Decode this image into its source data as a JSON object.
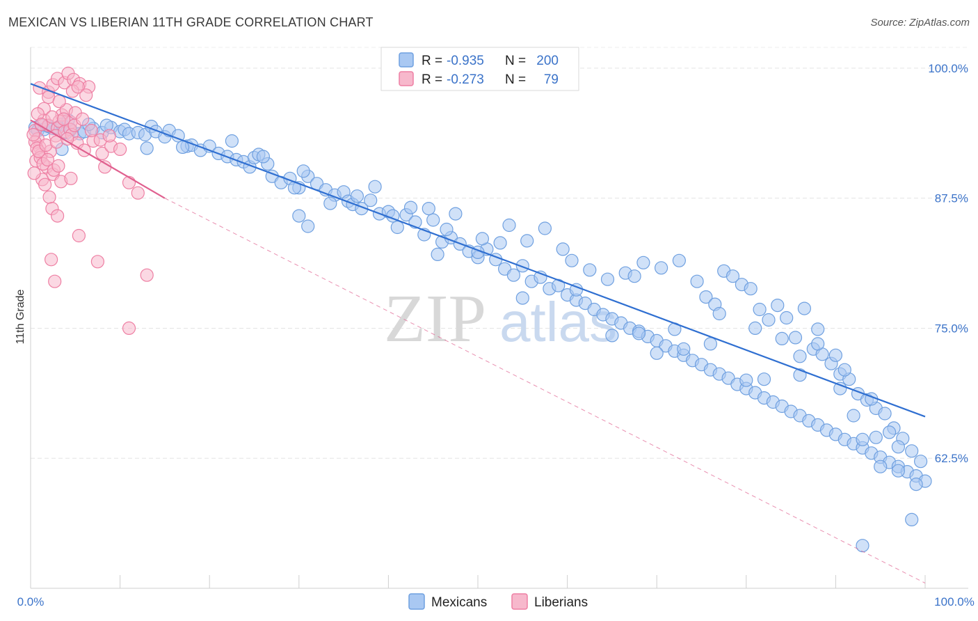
{
  "title": "MEXICAN VS LIBERIAN 11TH GRADE CORRELATION CHART",
  "source": "Source: ZipAtlas.com",
  "watermark": {
    "zip": "ZIP",
    "atlas": "atlas"
  },
  "chart_data": {
    "type": "scatter",
    "ylabel": "11th Grade",
    "xlim": [
      0,
      100
    ],
    "ylim": [
      50,
      102
    ],
    "x_tick_labels": [
      "0.0%",
      "100.0%"
    ],
    "y_ticks": [
      62.5,
      75.0,
      87.5,
      100.0
    ],
    "y_tick_labels": [
      "62.5%",
      "75.0%",
      "87.5%",
      "100.0%"
    ],
    "grid": "horizontal-dashed",
    "legend_position": "top-center",
    "series": [
      {
        "name": "Mexicans",
        "color": "#6fa0e0",
        "fill": "#a9c8f2",
        "line_color": "#2f6fd1",
        "R": "-0.935",
        "N": "200",
        "trend": {
          "x": [
            0,
            100
          ],
          "y": [
            98.5,
            66.5
          ]
        },
        "points": [
          [
            0.5,
            94.3
          ],
          [
            0.8,
            94.0
          ],
          [
            1.2,
            94.5
          ],
          [
            1.5,
            94.1
          ],
          [
            2.0,
            94.4
          ],
          [
            2.5,
            94.2
          ],
          [
            3.0,
            94.3
          ],
          [
            3.5,
            94.6
          ],
          [
            4.0,
            93.8
          ],
          [
            4.5,
            94.1
          ],
          [
            5.5,
            93.7
          ],
          [
            6.0,
            93.9
          ],
          [
            7.0,
            94.2
          ],
          [
            8.0,
            93.8
          ],
          [
            9.0,
            94.3
          ],
          [
            10.0,
            93.9
          ],
          [
            10.5,
            94.1
          ],
          [
            11.0,
            93.7
          ],
          [
            12.0,
            93.8
          ],
          [
            12.8,
            93.6
          ],
          [
            13.5,
            94.4
          ],
          [
            14.0,
            93.9
          ],
          [
            15.0,
            93.4
          ],
          [
            15.5,
            94.0
          ],
          [
            16.5,
            93.5
          ],
          [
            17.5,
            92.5
          ],
          [
            18.0,
            92.6
          ],
          [
            19.0,
            92.1
          ],
          [
            20.0,
            92.5
          ],
          [
            21.0,
            91.8
          ],
          [
            22.0,
            91.5
          ],
          [
            22.5,
            93.0
          ],
          [
            23.0,
            91.2
          ],
          [
            23.8,
            91.0
          ],
          [
            24.5,
            90.5
          ],
          [
            25.0,
            91.4
          ],
          [
            25.5,
            91.7
          ],
          [
            26.5,
            90.8
          ],
          [
            27.0,
            89.6
          ],
          [
            28.0,
            89.0
          ],
          [
            29.0,
            89.4
          ],
          [
            30.0,
            88.5
          ],
          [
            31.0,
            89.6
          ],
          [
            32.0,
            88.9
          ],
          [
            33.0,
            88.3
          ],
          [
            34.0,
            87.8
          ],
          [
            35.0,
            88.1
          ],
          [
            35.5,
            87.2
          ],
          [
            36.0,
            86.9
          ],
          [
            37.0,
            86.5
          ],
          [
            38.0,
            87.3
          ],
          [
            39.0,
            86.0
          ],
          [
            40.0,
            86.2
          ],
          [
            41.0,
            84.7
          ],
          [
            42.0,
            85.9
          ],
          [
            43.0,
            85.2
          ],
          [
            44.0,
            84.0
          ],
          [
            45.0,
            85.4
          ],
          [
            46.0,
            83.3
          ],
          [
            47.0,
            83.7
          ],
          [
            48.0,
            83.1
          ],
          [
            49.0,
            82.4
          ],
          [
            50.0,
            81.8
          ],
          [
            51.0,
            82.6
          ],
          [
            52.0,
            81.6
          ],
          [
            53.0,
            80.7
          ],
          [
            54.0,
            80.1
          ],
          [
            55.0,
            81.0
          ],
          [
            56.0,
            79.5
          ],
          [
            57.0,
            79.9
          ],
          [
            58.0,
            78.8
          ],
          [
            59.0,
            79.1
          ],
          [
            60.0,
            78.2
          ],
          [
            61.0,
            77.7
          ],
          [
            62.0,
            77.4
          ],
          [
            63.0,
            76.8
          ],
          [
            64.0,
            76.3
          ],
          [
            65.0,
            75.9
          ],
          [
            66.0,
            75.5
          ],
          [
            67.0,
            75.0
          ],
          [
            68.0,
            74.7
          ],
          [
            69.0,
            74.2
          ],
          [
            70.0,
            73.8
          ],
          [
            71.0,
            73.3
          ],
          [
            72.0,
            72.8
          ],
          [
            73.0,
            72.4
          ],
          [
            74.0,
            71.9
          ],
          [
            75.0,
            71.5
          ],
          [
            76.0,
            71.0
          ],
          [
            77.0,
            70.6
          ],
          [
            78.0,
            70.2
          ],
          [
            79.0,
            69.6
          ],
          [
            80.0,
            69.2
          ],
          [
            81.0,
            68.8
          ],
          [
            82.0,
            68.3
          ],
          [
            83.0,
            67.9
          ],
          [
            84.0,
            67.5
          ],
          [
            85.0,
            67.0
          ],
          [
            86.0,
            66.6
          ],
          [
            87.0,
            66.1
          ],
          [
            88.0,
            65.7
          ],
          [
            89.0,
            65.2
          ],
          [
            90.0,
            64.8
          ],
          [
            91.0,
            64.3
          ],
          [
            92.0,
            63.9
          ],
          [
            93.0,
            63.5
          ],
          [
            94.0,
            63.0
          ],
          [
            95.0,
            62.6
          ],
          [
            96.0,
            62.1
          ],
          [
            97.0,
            61.7
          ],
          [
            98.0,
            61.2
          ],
          [
            99.0,
            60.8
          ],
          [
            100.0,
            60.3
          ],
          [
            3.5,
            92.2
          ],
          [
            4.2,
            95.0
          ],
          [
            6.5,
            94.6
          ],
          [
            8.5,
            94.5
          ],
          [
            13.0,
            92.3
          ],
          [
            17.0,
            92.4
          ],
          [
            26.0,
            91.5
          ],
          [
            29.5,
            88.5
          ],
          [
            30.5,
            90.1
          ],
          [
            33.5,
            87.0
          ],
          [
            36.5,
            87.7
          ],
          [
            38.5,
            88.6
          ],
          [
            40.5,
            85.8
          ],
          [
            42.5,
            86.6
          ],
          [
            44.5,
            86.5
          ],
          [
            46.5,
            84.5
          ],
          [
            47.5,
            86.0
          ],
          [
            50.5,
            83.6
          ],
          [
            52.5,
            83.2
          ],
          [
            53.5,
            84.9
          ],
          [
            55.5,
            83.4
          ],
          [
            57.5,
            84.6
          ],
          [
            59.5,
            82.6
          ],
          [
            60.5,
            81.5
          ],
          [
            62.5,
            80.6
          ],
          [
            64.5,
            79.7
          ],
          [
            66.5,
            80.3
          ],
          [
            67.5,
            80.0
          ],
          [
            68.5,
            81.3
          ],
          [
            70.5,
            80.8
          ],
          [
            72.5,
            81.5
          ],
          [
            74.5,
            79.5
          ],
          [
            75.5,
            78.0
          ],
          [
            76.5,
            77.3
          ],
          [
            77.5,
            80.5
          ],
          [
            78.5,
            80.0
          ],
          [
            79.5,
            79.2
          ],
          [
            80.5,
            78.8
          ],
          [
            81.5,
            76.8
          ],
          [
            82.5,
            75.8
          ],
          [
            83.5,
            77.2
          ],
          [
            84.5,
            76.0
          ],
          [
            85.5,
            74.1
          ],
          [
            86.5,
            76.9
          ],
          [
            87.5,
            73.0
          ],
          [
            88.5,
            72.5
          ],
          [
            89.5,
            71.6
          ],
          [
            90.5,
            70.6
          ],
          [
            91.5,
            70.1
          ],
          [
            92.5,
            68.7
          ],
          [
            93.5,
            68.1
          ],
          [
            94.5,
            67.3
          ],
          [
            95.5,
            66.8
          ],
          [
            96.5,
            65.4
          ],
          [
            97.5,
            64.4
          ],
          [
            98.5,
            63.2
          ],
          [
            99.5,
            62.2
          ],
          [
            30.0,
            85.8
          ],
          [
            31.0,
            84.8
          ],
          [
            45.5,
            82.1
          ],
          [
            50.0,
            82.3
          ],
          [
            55.0,
            77.9
          ],
          [
            61.0,
            78.7
          ],
          [
            65.0,
            74.3
          ],
          [
            68.0,
            74.5
          ],
          [
            70.0,
            72.6
          ],
          [
            73.0,
            73.0
          ],
          [
            76.0,
            73.5
          ],
          [
            80.0,
            70.0
          ],
          [
            82.0,
            70.1
          ],
          [
            86.0,
            70.5
          ],
          [
            88.0,
            74.9
          ],
          [
            90.0,
            72.4
          ],
          [
            93.0,
            64.3
          ],
          [
            95.0,
            61.7
          ],
          [
            97.0,
            61.3
          ],
          [
            99.0,
            60.0
          ],
          [
            91.0,
            71.0
          ],
          [
            94.0,
            68.2
          ],
          [
            96.0,
            65.0
          ],
          [
            98.5,
            56.6
          ],
          [
            93.0,
            54.1
          ],
          [
            72.0,
            74.9
          ],
          [
            77.0,
            76.4
          ],
          [
            81.0,
            75.0
          ],
          [
            84.0,
            74.0
          ],
          [
            86.0,
            72.3
          ],
          [
            88.0,
            73.5
          ],
          [
            90.5,
            69.2
          ],
          [
            92.0,
            66.6
          ],
          [
            94.5,
            64.5
          ],
          [
            97.0,
            63.6
          ]
        ]
      },
      {
        "name": "Liberians",
        "color": "#ee7fa3",
        "fill": "#f7b8cc",
        "line_color": "#e0608f",
        "R": "-0.273",
        "N": "79",
        "trend": {
          "x": [
            0,
            15
          ],
          "y": [
            95.0,
            87.5
          ],
          "dash_to": {
            "x": 100,
            "y": 50.5
          }
        },
        "points": [
          [
            1.5,
            95.0
          ],
          [
            2.0,
            94.5
          ],
          [
            3.0,
            94.2
          ],
          [
            3.5,
            95.5
          ],
          [
            4.0,
            96.0
          ],
          [
            4.5,
            94.8
          ],
          [
            5.0,
            95.7
          ],
          [
            0.5,
            94.0
          ],
          [
            0.8,
            93.2
          ],
          [
            1.0,
            92.4
          ],
          [
            1.2,
            91.7
          ],
          [
            0.6,
            91.1
          ],
          [
            1.8,
            90.5
          ],
          [
            2.2,
            92.0
          ],
          [
            2.8,
            93.5
          ],
          [
            3.2,
            94.9
          ],
          [
            3.8,
            93.9
          ],
          [
            4.4,
            94.1
          ],
          [
            1.3,
            89.3
          ],
          [
            2.5,
            89.8
          ],
          [
            3.4,
            89.1
          ],
          [
            4.5,
            89.4
          ],
          [
            1.0,
            98.1
          ],
          [
            2.0,
            97.7
          ],
          [
            2.5,
            98.4
          ],
          [
            3.0,
            99.0
          ],
          [
            3.8,
            98.6
          ],
          [
            4.2,
            99.5
          ],
          [
            4.8,
            98.9
          ],
          [
            5.5,
            98.5
          ],
          [
            6.5,
            98.2
          ],
          [
            2.0,
            97.2
          ],
          [
            3.2,
            96.8
          ],
          [
            1.5,
            96.1
          ],
          [
            0.8,
            95.6
          ],
          [
            2.4,
            95.3
          ],
          [
            3.7,
            95.1
          ],
          [
            4.6,
            93.6
          ],
          [
            5.2,
            92.8
          ],
          [
            6.0,
            92.1
          ],
          [
            7.0,
            93.0
          ],
          [
            8.0,
            91.8
          ],
          [
            9.0,
            92.5
          ],
          [
            10.0,
            92.2
          ],
          [
            0.5,
            92.9
          ],
          [
            0.7,
            92.3
          ],
          [
            1.1,
            91.4
          ],
          [
            1.4,
            90.8
          ],
          [
            1.9,
            91.2
          ],
          [
            2.6,
            90.2
          ],
          [
            3.1,
            90.6
          ],
          [
            2.1,
            87.6
          ],
          [
            2.4,
            86.5
          ],
          [
            3.0,
            85.8
          ],
          [
            5.4,
            83.9
          ],
          [
            2.3,
            81.6
          ],
          [
            7.5,
            81.4
          ],
          [
            2.7,
            79.5
          ],
          [
            13.0,
            80.1
          ],
          [
            11.0,
            75.0
          ],
          [
            4.7,
            97.8
          ],
          [
            5.3,
            98.2
          ],
          [
            6.2,
            97.4
          ],
          [
            0.9,
            92.0
          ],
          [
            1.7,
            92.6
          ],
          [
            2.9,
            92.9
          ],
          [
            4.1,
            93.2
          ],
          [
            4.9,
            94.5
          ],
          [
            5.8,
            95.1
          ],
          [
            6.8,
            94.0
          ],
          [
            7.8,
            93.1
          ],
          [
            8.8,
            93.5
          ],
          [
            0.4,
            89.9
          ],
          [
            1.6,
            88.8
          ],
          [
            8.3,
            90.5
          ],
          [
            11.0,
            89.0
          ],
          [
            12.0,
            88.0
          ],
          [
            0.3,
            93.6
          ],
          [
            1.2,
            94.6
          ]
        ]
      }
    ]
  }
}
